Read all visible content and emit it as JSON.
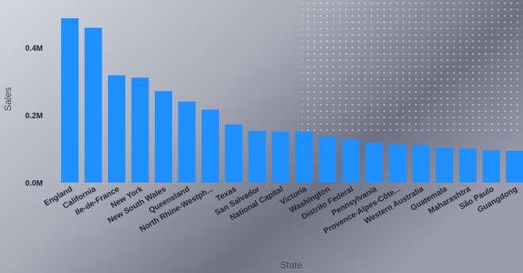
{
  "chart_data": {
    "type": "bar",
    "x_label": "State",
    "y_label": "Sales",
    "categories": [
      "England",
      "California",
      "Ile-de-France",
      "New York",
      "New South Wales",
      "Queensland",
      "North Rhine-Westph...",
      "Texas",
      "San Salvador",
      "National Capital",
      "Victoria",
      "Washington",
      "Distrito Federal",
      "Pennsylvania",
      "Provence-Alpes-Côte...",
      "Western Australia",
      "Guatemala",
      "Maharashtra",
      "São Paulo",
      "Guangdong"
    ],
    "values": [
      487000,
      459000,
      318000,
      311000,
      271000,
      240000,
      216000,
      172000,
      153000,
      151000,
      151000,
      136000,
      127000,
      118000,
      113000,
      111000,
      104000,
      101000,
      96000,
      94000
    ],
    "color": "#1e90ff",
    "ylim": [
      0,
      400000
    ],
    "yticks": [
      {
        "value": 0,
        "label": "0.0M"
      },
      {
        "value": 200000,
        "label": "0.2M"
      },
      {
        "value": 400000,
        "label": "0.4M"
      }
    ]
  }
}
